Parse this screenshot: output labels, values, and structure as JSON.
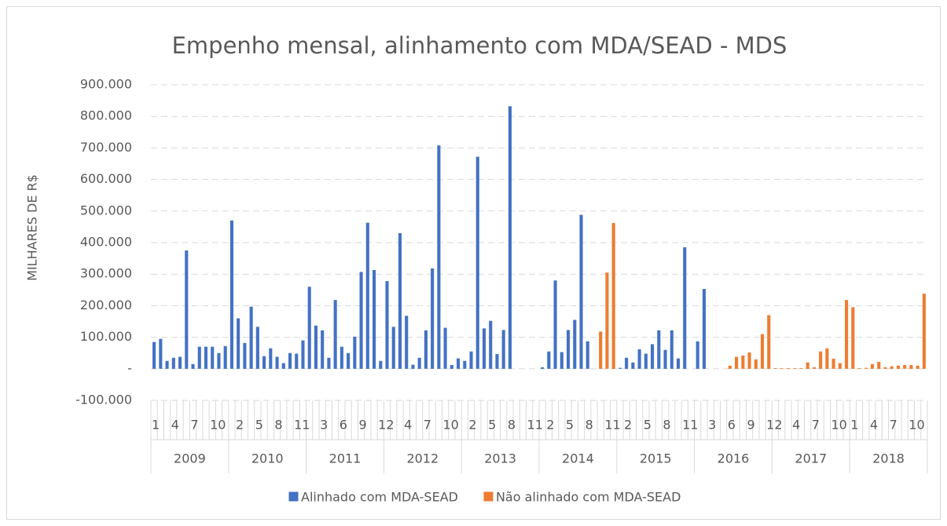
{
  "chart_data": {
    "type": "bar",
    "title": "Empenho mensal, alinhamento com MDA/SEAD - MDS",
    "y_label": "MILHARES DE R$",
    "categories": [
      "1",
      null,
      null,
      "4",
      null,
      null,
      "7",
      null,
      null,
      "10",
      null,
      null,
      null,
      "2",
      null,
      null,
      "5",
      null,
      null,
      "8",
      null,
      null,
      "11",
      null,
      null,
      null,
      "3",
      null,
      null,
      "6",
      null,
      null,
      "9",
      null,
      null,
      "12",
      null,
      null,
      null,
      "4",
      null,
      null,
      "7",
      null,
      null,
      "10",
      null,
      null,
      null,
      "2",
      null,
      null,
      "5",
      null,
      null,
      "8",
      null,
      null,
      "11",
      null,
      null,
      "2",
      null,
      null,
      "5",
      null,
      null,
      "8",
      null,
      null,
      "11",
      null,
      null,
      "2",
      null,
      null,
      "5",
      null,
      null,
      "8",
      null,
      null,
      "11",
      null,
      null,
      null,
      "3",
      null,
      null,
      "6",
      null,
      null,
      "9",
      null,
      null,
      "12",
      null,
      null,
      null,
      "4",
      null,
      null,
      "7",
      null,
      null,
      "10",
      null,
      null,
      "1",
      null,
      null,
      "4",
      null,
      null,
      "7",
      null,
      null,
      "10",
      null,
      null
    ],
    "years": [
      "2009",
      "2010",
      "2011",
      "2012",
      "2013",
      "2014",
      "2015",
      "2016",
      "2017",
      "2018"
    ],
    "series": [
      {
        "name": "Alinhado com MDA-SEAD",
        "color": "#4472c4",
        "values": [
          85000,
          95000,
          25000,
          35000,
          38000,
          375000,
          15000,
          70000,
          70000,
          70000,
          50000,
          72000,
          470000,
          160000,
          82000,
          197000,
          133000,
          40000,
          65000,
          38000,
          18000,
          50000,
          48000,
          90000,
          260000,
          137000,
          122000,
          35000,
          218000,
          70000,
          50000,
          102000,
          307000,
          463000,
          313000,
          25000,
          278000,
          133000,
          430000,
          168000,
          13000,
          35000,
          122000,
          318000,
          708000,
          130000,
          12000,
          33000,
          25000,
          55000,
          672000,
          128000,
          152000,
          47000,
          123000,
          832000,
          0,
          0,
          0,
          0,
          5000,
          55000,
          280000,
          53000,
          123000,
          155000,
          488000,
          87000,
          0,
          0,
          0,
          0,
          3000,
          35000,
          20000,
          62000,
          48000,
          78000,
          122000,
          60000,
          122000,
          33000,
          385000,
          0,
          87000,
          253000,
          0,
          0,
          0,
          0,
          0,
          0,
          0,
          0,
          0,
          0,
          0,
          0,
          0,
          0,
          0,
          0,
          0,
          0,
          0,
          0,
          0,
          0,
          0,
          0,
          0,
          0,
          0,
          0,
          0,
          0,
          0,
          0,
          0,
          0
        ]
      },
      {
        "name": "Não alinhado com MDA-SEAD",
        "color": "#ed7d31",
        "values": [
          0,
          0,
          0,
          0,
          0,
          0,
          0,
          0,
          0,
          0,
          0,
          0,
          0,
          0,
          0,
          0,
          0,
          0,
          0,
          0,
          0,
          0,
          0,
          0,
          0,
          0,
          0,
          0,
          0,
          0,
          0,
          0,
          0,
          0,
          0,
          0,
          0,
          0,
          0,
          0,
          0,
          0,
          0,
          0,
          0,
          0,
          0,
          0,
          0,
          0,
          0,
          0,
          0,
          0,
          0,
          0,
          0,
          0,
          0,
          0,
          0,
          0,
          0,
          0,
          0,
          0,
          0,
          0,
          0,
          118000,
          305000,
          462000,
          0,
          0,
          0,
          0,
          0,
          0,
          0,
          0,
          0,
          0,
          0,
          0,
          0,
          0,
          0,
          0,
          0,
          10000,
          38000,
          42000,
          52000,
          30000,
          110000,
          170000,
          2000,
          2000,
          2000,
          2000,
          2000,
          20000,
          5000,
          55000,
          65000,
          32000,
          18000,
          218000,
          195000,
          2000,
          3000,
          15000,
          22000,
          5000,
          8000,
          10000,
          12000,
          12000,
          10000,
          238000
        ]
      }
    ],
    "ylim": [
      -100000,
      900000
    ],
    "yticks": [
      {
        "value": -100000,
        "label": "-100.000"
      },
      {
        "value": 0,
        "label": "-"
      },
      {
        "value": 100000,
        "label": "100.000"
      },
      {
        "value": 200000,
        "label": "200.000"
      },
      {
        "value": 300000,
        "label": "300.000"
      },
      {
        "value": 400000,
        "label": "400.000"
      },
      {
        "value": 500000,
        "label": "500.000"
      },
      {
        "value": 600000,
        "label": "600.000"
      },
      {
        "value": 700000,
        "label": "700.000"
      },
      {
        "value": 800000,
        "label": "800.000"
      },
      {
        "value": 900000,
        "label": "900.000"
      }
    ],
    "grid": true,
    "legend": "bottom"
  }
}
